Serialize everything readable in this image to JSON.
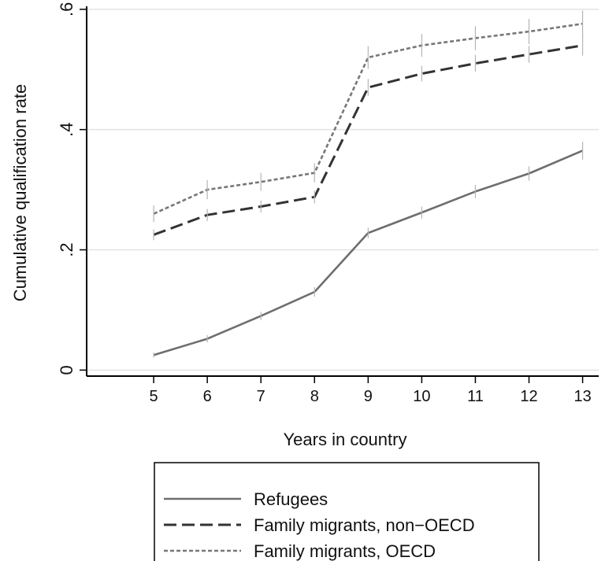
{
  "chart_data": {
    "type": "line",
    "title": "",
    "xlabel": "Years in country",
    "ylabel": "Cumulative qualification rate",
    "x": [
      5,
      6,
      7,
      8,
      9,
      10,
      11,
      12,
      13
    ],
    "x_ticks": [
      "5",
      "6",
      "7",
      "8",
      "9",
      "10",
      "11",
      "12",
      "13"
    ],
    "xlim": [
      3.75,
      13.3
    ],
    "ylim": [
      -0.01,
      0.605
    ],
    "y_ticks": [
      0,
      0.2,
      0.4,
      0.6
    ],
    "y_tick_labels": [
      "0",
      ".2",
      ".4",
      ".6"
    ],
    "grid": true,
    "legend_position": "bottom",
    "error_bars": true,
    "series": [
      {
        "name": "Refugees",
        "style": "solid",
        "color": "#6e6e6e",
        "values": [
          0.025,
          0.052,
          0.09,
          0.13,
          0.228,
          0.262,
          0.297,
          0.327,
          0.365
        ],
        "ci_halfwidth": [
          0.004,
          0.006,
          0.007,
          0.008,
          0.009,
          0.01,
          0.011,
          0.012,
          0.015
        ]
      },
      {
        "name": "Family migrants, non−OECD",
        "style": "dashed",
        "color": "#333333",
        "values": [
          0.225,
          0.258,
          0.272,
          0.288,
          0.47,
          0.493,
          0.51,
          0.525,
          0.54
        ],
        "ci_halfwidth": [
          0.009,
          0.01,
          0.01,
          0.011,
          0.014,
          0.013,
          0.014,
          0.014,
          0.017
        ]
      },
      {
        "name": "Family migrants, OECD",
        "style": "dotted",
        "color": "#777777",
        "values": [
          0.26,
          0.3,
          0.313,
          0.328,
          0.52,
          0.54,
          0.552,
          0.563,
          0.576
        ],
        "ci_halfwidth": [
          0.014,
          0.016,
          0.015,
          0.016,
          0.019,
          0.019,
          0.02,
          0.021,
          0.022
        ]
      }
    ]
  }
}
